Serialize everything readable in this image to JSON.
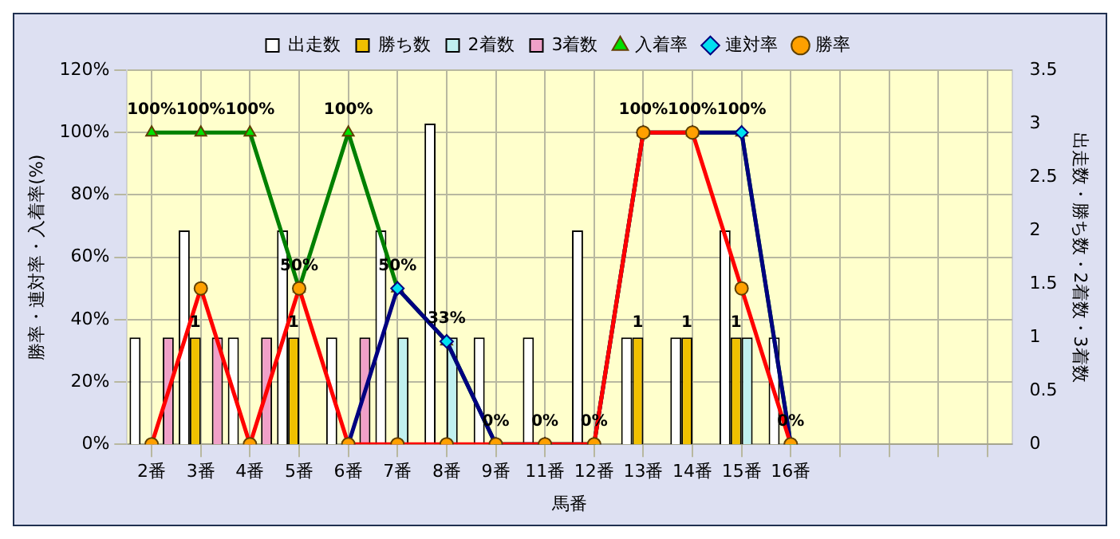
{
  "chart_data": {
    "type": "bar",
    "xlabel": "馬番",
    "ylabel": "勝率・連対率・入着率(%)",
    "y2label": "出走数・勝ち数・2着数・3着数",
    "categories": [
      "2番",
      "3番",
      "4番",
      "5番",
      "6番",
      "7番",
      "8番",
      "9番",
      "11番",
      "12番",
      "13番",
      "14番",
      "15番",
      "16番",
      null,
      null,
      null,
      null
    ],
    "series": [
      {
        "name": "出走数",
        "axis": "y2",
        "color": "#ffffff",
        "values": [
          1,
          2,
          1,
          2,
          1,
          2,
          3,
          1,
          1,
          2,
          1,
          1,
          2,
          1,
          null,
          null,
          null,
          null
        ]
      },
      {
        "name": "勝ち数",
        "axis": "y2",
        "color": "#f0c000",
        "values": [
          0,
          1,
          0,
          1,
          0,
          0,
          0,
          0,
          0,
          0,
          1,
          1,
          1,
          0,
          null,
          null,
          null,
          null
        ],
        "value_labels": [
          null,
          "1",
          null,
          "1",
          null,
          null,
          null,
          null,
          null,
          null,
          "1",
          "1",
          "1",
          null,
          null,
          null,
          null,
          null
        ]
      },
      {
        "name": "2着数",
        "axis": "y2",
        "color": "#c0f0f0",
        "values": [
          0,
          0,
          0,
          0,
          0,
          1,
          1,
          0,
          0,
          0,
          0,
          0,
          1,
          0,
          null,
          null,
          null,
          null
        ]
      },
      {
        "name": "3着数",
        "axis": "y2",
        "color": "#f0a0c8",
        "values": [
          1,
          1,
          1,
          0,
          1,
          0,
          0,
          0,
          0,
          0,
          0,
          0,
          0,
          0,
          null,
          null,
          null,
          null
        ]
      },
      {
        "name": "入着率",
        "type": "line",
        "axis": "y",
        "color": "#008000",
        "marker": "triangle",
        "values": [
          100,
          100,
          100,
          50,
          100,
          50,
          33,
          0,
          0,
          0,
          100,
          100,
          100,
          0,
          null,
          null,
          null,
          null
        ],
        "value_labels": [
          "100%",
          "100%",
          "100%",
          "50%",
          "100%",
          "50%",
          "33%",
          "0%",
          "0%",
          "0%",
          "100%",
          "100%",
          "100%",
          "0%",
          null,
          null,
          null,
          null
        ]
      },
      {
        "name": "連対率",
        "type": "line",
        "axis": "y",
        "color": "#000080",
        "marker": "diamond",
        "values": [
          null,
          null,
          null,
          null,
          0,
          50,
          33,
          0,
          0,
          0,
          100,
          100,
          100,
          0,
          null,
          null,
          null,
          null
        ]
      },
      {
        "name": "勝率",
        "type": "line",
        "axis": "y",
        "color": "#ff0000",
        "marker": "circle",
        "values": [
          0,
          50,
          0,
          50,
          0,
          0,
          0,
          0,
          0,
          0,
          100,
          100,
          50,
          0,
          null,
          null,
          null,
          null
        ]
      }
    ],
    "ylim": [
      0,
      120
    ],
    "yticks": [
      {
        "value": 0,
        "label": "0%"
      },
      {
        "value": 20,
        "label": "20%"
      },
      {
        "value": 40,
        "label": "40%"
      },
      {
        "value": 60,
        "label": "60%"
      },
      {
        "value": 80,
        "label": "80%"
      },
      {
        "value": 100,
        "label": "100%"
      },
      {
        "value": 120,
        "label": "120%"
      }
    ],
    "y2lim": [
      0,
      3.5
    ],
    "y2ticks": [
      0,
      0.5,
      1,
      1.5,
      2,
      2.5,
      3,
      3.5
    ],
    "grid": true,
    "legend": "top",
    "line_style": "solid"
  }
}
